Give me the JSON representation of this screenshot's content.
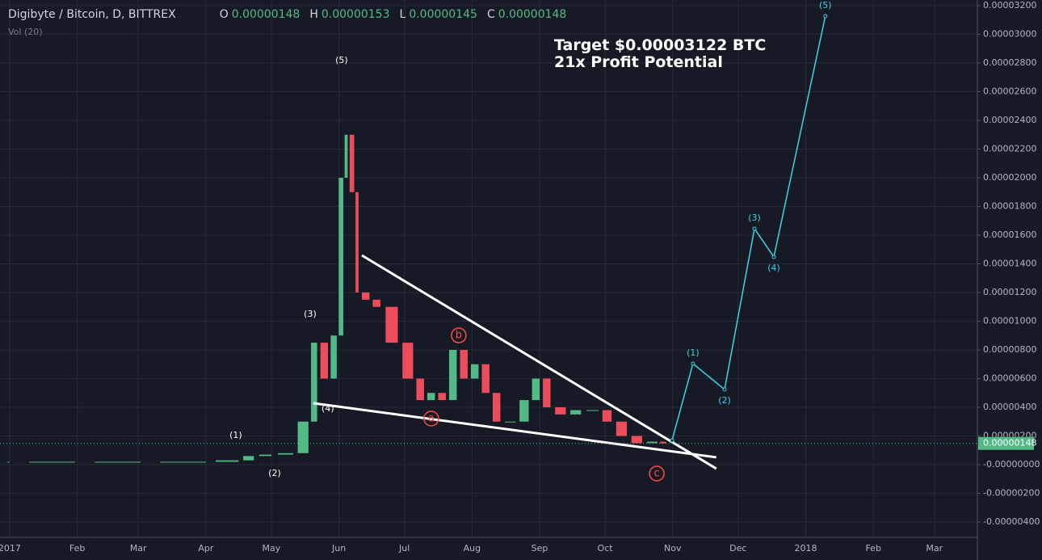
{
  "chart_data": {
    "type": "candlestick",
    "header": {
      "symbol": "Digibyte / Bitcoin, D, BITTREX",
      "o_label": "O",
      "open": "0.00000148",
      "h_label": "H",
      "high": "0.00000153",
      "l_label": "L",
      "low": "0.00000145",
      "c_label": "C",
      "close": "0.00000148",
      "volume": "Vol (20)"
    },
    "annotation": [
      "Target $0.00003122 BTC",
      "21x Profit Potential"
    ],
    "xlim": [
      -4.4,
      443.7
    ],
    "ylim": [
      -5.07e-06,
      3.239e-05
    ],
    "xticks": [
      {
        "value": 0,
        "label": "2017"
      },
      {
        "value": 31,
        "label": "Feb"
      },
      {
        "value": 59,
        "label": "Mar"
      },
      {
        "value": 90,
        "label": "Apr"
      },
      {
        "value": 120,
        "label": "May"
      },
      {
        "value": 151,
        "label": "Jun"
      },
      {
        "value": 181,
        "label": "Jul"
      },
      {
        "value": 212,
        "label": "Aug"
      },
      {
        "value": 243,
        "label": "Sep"
      },
      {
        "value": 273,
        "label": "Oct"
      },
      {
        "value": 304,
        "label": "Nov"
      },
      {
        "value": 334,
        "label": "Dec"
      },
      {
        "value": 365,
        "label": "2018"
      },
      {
        "value": 396,
        "label": "Feb"
      },
      {
        "value": 424,
        "label": "Mar"
      }
    ],
    "yticks": [
      {
        "value": 3.2e-05,
        "label": "0.00003200"
      },
      {
        "value": 3e-05,
        "label": "0.00003000"
      },
      {
        "value": 2.8e-05,
        "label": "0.00002800"
      },
      {
        "value": 2.6e-05,
        "label": "0.00002600"
      },
      {
        "value": 2.4e-05,
        "label": "0.00002400"
      },
      {
        "value": 2.2e-05,
        "label": "0.00002200"
      },
      {
        "value": 2e-05,
        "label": "0.00002000"
      },
      {
        "value": 1.8e-05,
        "label": "0.00001800"
      },
      {
        "value": 1.6e-05,
        "label": "0.00001600"
      },
      {
        "value": 1.4e-05,
        "label": "0.00001400"
      },
      {
        "value": 1.2e-05,
        "label": "0.00001200"
      },
      {
        "value": 1e-05,
        "label": "0.00001000"
      },
      {
        "value": 8e-06,
        "label": "0.00000800"
      },
      {
        "value": 6e-06,
        "label": "0.00000600"
      },
      {
        "value": 4e-06,
        "label": "0.00000400"
      },
      {
        "value": 2e-06,
        "label": "0.00000200"
      },
      {
        "value": 0,
        "label": "-0.00000000"
      },
      {
        "value": -2e-06,
        "label": "-0.00000200"
      },
      {
        "value": -4e-06,
        "label": "-0.00000400"
      }
    ],
    "grid": true,
    "last_price": {
      "value": 1.48e-06,
      "label": "0.00000148"
    },
    "up_color": "#53b987",
    "down_color": "#eb4d5c",
    "price": {
      "x": [
        0,
        30,
        60,
        90,
        105,
        112,
        120,
        130,
        137,
        141,
        146,
        150,
        153,
        155,
        158,
        160,
        165,
        170,
        178,
        185,
        190,
        195,
        200,
        205,
        210,
        215,
        220,
        225,
        232,
        238,
        243,
        248,
        255,
        262,
        270,
        276,
        283,
        290,
        297,
        301
      ],
      "values": [
        2e-07,
        2e-07,
        2e-07,
        2e-07,
        3e-07,
        6e-07,
        7e-07,
        8e-07,
        3e-06,
        8.5e-06,
        6e-06,
        9e-06,
        2e-05,
        2.3e-05,
        1.9e-05,
        1.2e-05,
        1.15e-05,
        1.1e-05,
        8.5e-06,
        6e-06,
        4.5e-06,
        5e-06,
        4.5e-06,
        8e-06,
        6e-06,
        7e-06,
        5e-06,
        3e-06,
        3e-06,
        4.5e-06,
        6e-06,
        4e-06,
        3.5e-06,
        3.8e-06,
        3.8e-06,
        3e-06,
        2e-06,
        1.5e-06,
        1.6e-06,
        1.48e-06
      ]
    },
    "projection": {
      "color": "#3fd3e6",
      "x": [
        303.7,
        313.3,
        327.8,
        341.5,
        350.4,
        374
      ],
      "values": [
        1.69e-06,
        7.04e-06,
        5.24e-06,
        1.645e-05,
        1.448e-05,
        3.127e-05
      ],
      "labels": [
        null,
        "(1)",
        "(2)",
        "(3)",
        "(4)",
        "(5)"
      ]
    },
    "trendlines": [
      {
        "x": [
          161.5,
          324
        ],
        "values": [
          1.459e-05,
          -2.8e-07
        ]
      },
      {
        "x": [
          139.3,
          324
        ],
        "values": [
          4.28e-06,
          5.1e-07
        ]
      }
    ],
    "wave_labels": [
      {
        "text": "(1)",
        "x": 103.7,
        "y": 2.03e-06,
        "color": "#ffffff",
        "circled": false
      },
      {
        "text": "(2)",
        "x": 121.5,
        "y": -6.2e-07,
        "color": "#ffffff",
        "circled": false
      },
      {
        "text": "(3)",
        "x": 137.8,
        "y": 1.048e-05,
        "color": "#ffffff",
        "circled": false
      },
      {
        "text": "(4)",
        "x": 145.9,
        "y": 3.89e-06,
        "color": "#ffffff",
        "circled": false
      },
      {
        "text": "(5)",
        "x": 152.2,
        "y": 2.817e-05,
        "color": "#ffffff",
        "circled": false
      },
      {
        "text": "a",
        "x": 193.3,
        "y": 3.21e-06,
        "color": "#ff4a4a",
        "circled": true
      },
      {
        "text": "b",
        "x": 205.9,
        "y": 9.01e-06,
        "color": "#ff4a4a",
        "circled": true
      },
      {
        "text": "c",
        "x": 296.7,
        "y": -6.2e-07,
        "color": "#ff4a4a",
        "circled": true
      }
    ]
  }
}
